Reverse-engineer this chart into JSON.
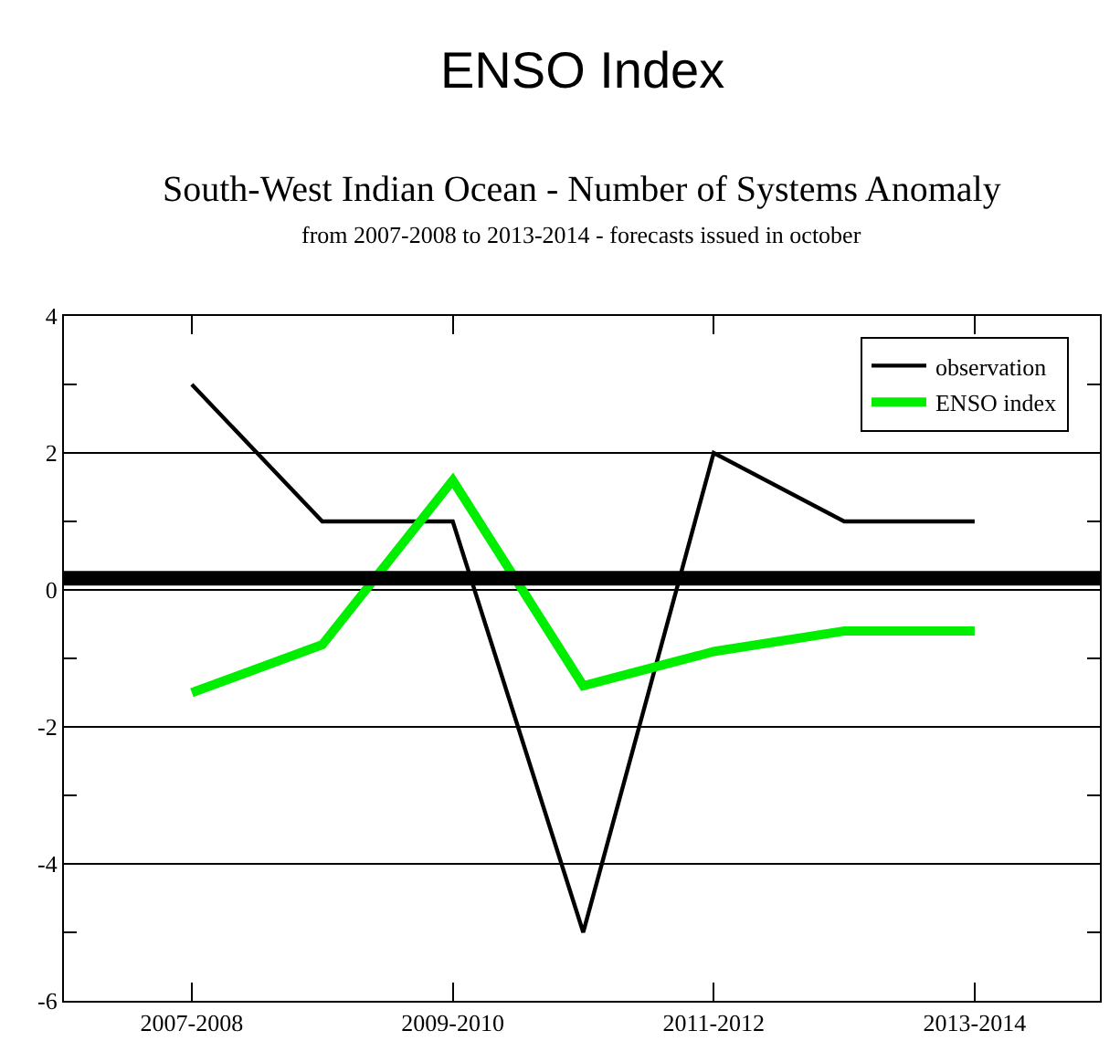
{
  "chart_data": {
    "type": "line",
    "title": "ENSO Index",
    "subtitle": "South-West Indian Ocean - Number of Systems Anomaly",
    "annotations": [
      "from 2007-2008 to 2013-2014 - forecasts issued in october"
    ],
    "categories": [
      "2007-2008",
      null,
      "2009-2010",
      null,
      "2011-2012",
      null,
      "2013-2014"
    ],
    "series": [
      {
        "name": "observation",
        "color": "#000000",
        "values": [
          3,
          1,
          1,
          -5,
          2,
          1,
          1
        ]
      },
      {
        "name": "ENSO index",
        "color": "#00ee00",
        "values": [
          -1.5,
          -0.8,
          1.6,
          -1.4,
          -0.9,
          -0.6,
          -0.6
        ]
      }
    ],
    "ylim": [
      -6,
      4
    ],
    "yticks": [
      -6,
      {
        "value": -5,
        "label": null
      },
      -4,
      {
        "value": -3,
        "label": null
      },
      -2,
      {
        "value": -1,
        "label": null
      },
      0,
      {
        "value": 1,
        "label": null
      },
      2,
      {
        "value": 3,
        "label": null
      },
      4
    ],
    "ref_lines": [
      {
        "axis": "y",
        "value": 0.17,
        "color": "#000000"
      }
    ],
    "grid": "y",
    "legend": "top right",
    "marker": "none",
    "line_style": "solid"
  }
}
